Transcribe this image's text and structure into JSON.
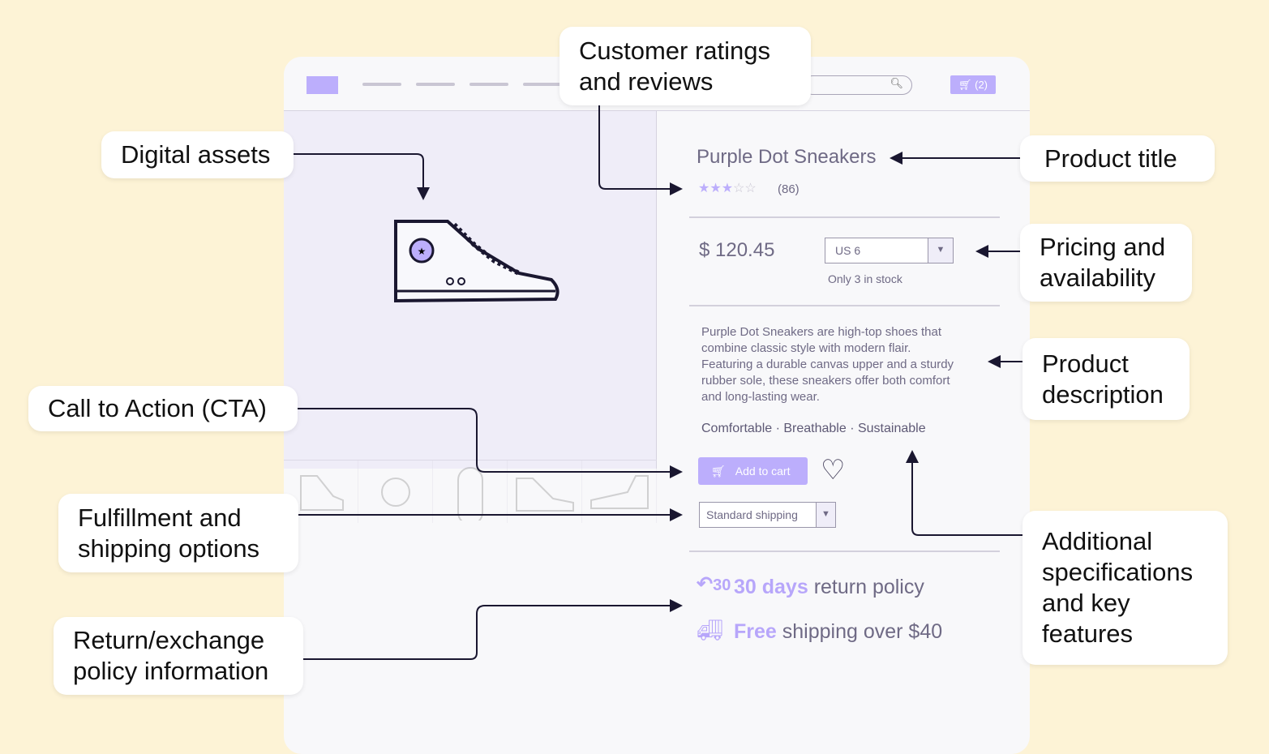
{
  "header": {
    "cart_label": "(2)",
    "search_icon": "search-icon",
    "cart_icon": "cart-icon"
  },
  "product": {
    "title": "Purple Dot Sneakers",
    "rating": 3,
    "rating_max": 5,
    "review_count": "(86)",
    "price": "$ 120.45",
    "size_select": "US 6",
    "stock": "Only 3 in stock",
    "description": [
      "Purple Dot Sneakers are high-top shoes that",
      "combine classic style with modern flair.",
      "Featuring a durable canvas upper and a sturdy",
      "rubber sole, these sneakers offer both comfort",
      "and long-lasting wear."
    ],
    "features": "Comfortable · Breathable · Sustainable",
    "add_to_cart": "Add to cart",
    "shipping_select": "Standard shipping",
    "return_bold": "30 days",
    "return_rest": " return policy",
    "return_icon_text": "30",
    "ship_bold": "Free",
    "ship_rest": " shipping over $40"
  },
  "colors": {
    "accent": "#bcaefc",
    "accent_text": "#b7a6fa",
    "background": "#fdf3d6"
  },
  "callouts": {
    "ratings": "Customer ratings and reviews",
    "assets": "Digital assets",
    "title": "Product title",
    "pricing": "Pricing and availability",
    "description": "Product description",
    "cta": "Call to Action (CTA)",
    "fulfillment": "Fulfillment and shipping options",
    "returns": "Return/exchange policy information",
    "specs": "Additional specifications and key features"
  }
}
